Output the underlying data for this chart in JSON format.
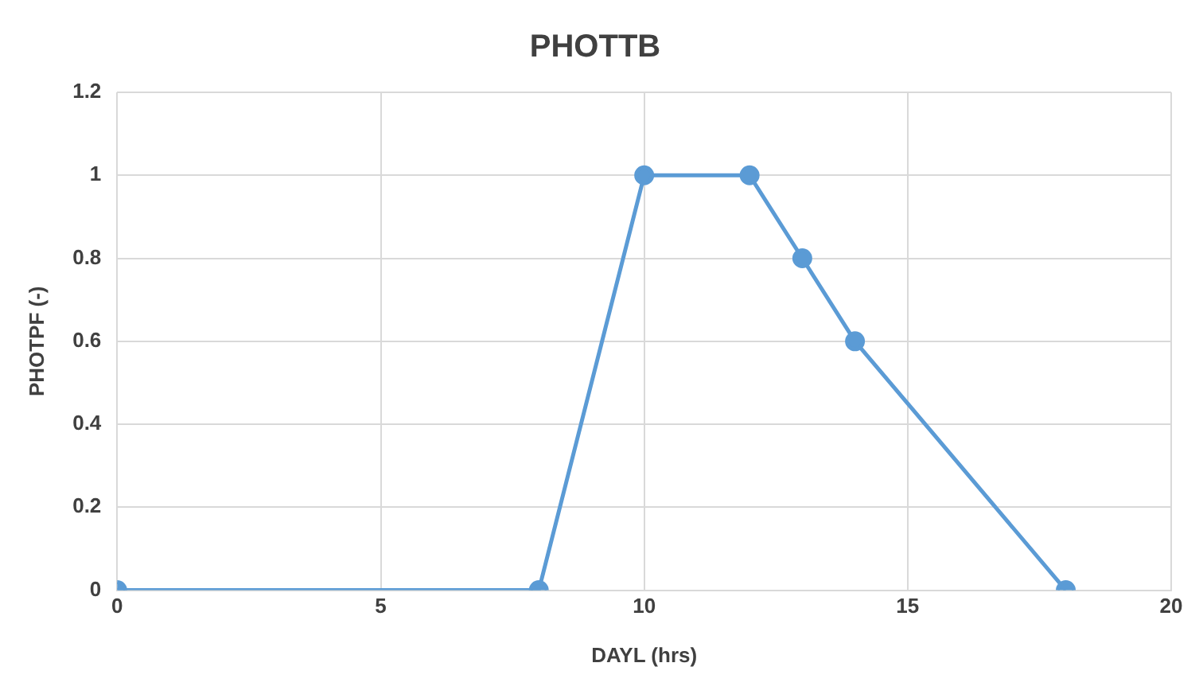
{
  "chart_data": {
    "type": "line",
    "title": "PHOTTB",
    "xlabel": "DAYL (hrs)",
    "ylabel": "PHOTPF (-)",
    "x": [
      0,
      8,
      10,
      12,
      13,
      14,
      18
    ],
    "series": [
      {
        "color": "#5b9bd5",
        "values": [
          0,
          0,
          1,
          1,
          0.8,
          0.6,
          0
        ]
      }
    ],
    "xlim": [
      0,
      20
    ],
    "xticks": [
      0,
      5,
      10,
      15,
      20
    ],
    "ylim": [
      0,
      1.2
    ],
    "yticks": [
      0,
      0.2,
      0.4,
      0.6,
      0.8,
      1,
      1.2
    ],
    "grid": true,
    "legend": false,
    "marker": "circle",
    "line_style": "solid"
  }
}
